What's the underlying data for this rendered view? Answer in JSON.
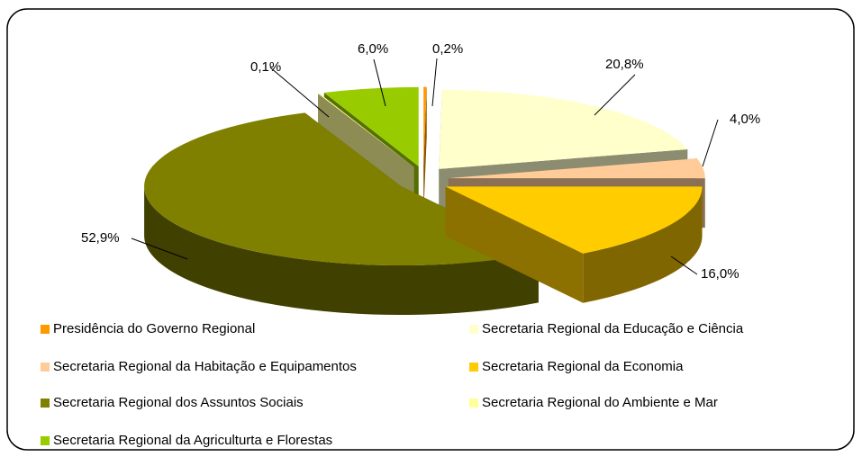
{
  "chart_data": {
    "type": "pie",
    "categories": [
      "Presidência do Governo Regional",
      "Secretaria Regional da Educação e Ciência",
      "Secretaria Regional da Habitação e Equipamentos",
      "Secretaria Regional da Economia",
      "Secretaria Regional dos Assuntos Sociais",
      "Secretaria Regional do Ambiente e Mar",
      "Secretaria Regional da Agriculturta e Florestas"
    ],
    "values": [
      0.2,
      20.8,
      4.0,
      16.0,
      52.9,
      0.1,
      6.0
    ],
    "value_labels": [
      "0,2%",
      "20,8%",
      "4,0%",
      "16,0%",
      "52,9%",
      "0,1%",
      "6,0%"
    ],
    "colors": [
      "#ff9900",
      "#ffffcc",
      "#ffcc99",
      "#ffcc00",
      "#808000",
      "#ffff99",
      "#99cc00"
    ]
  }
}
